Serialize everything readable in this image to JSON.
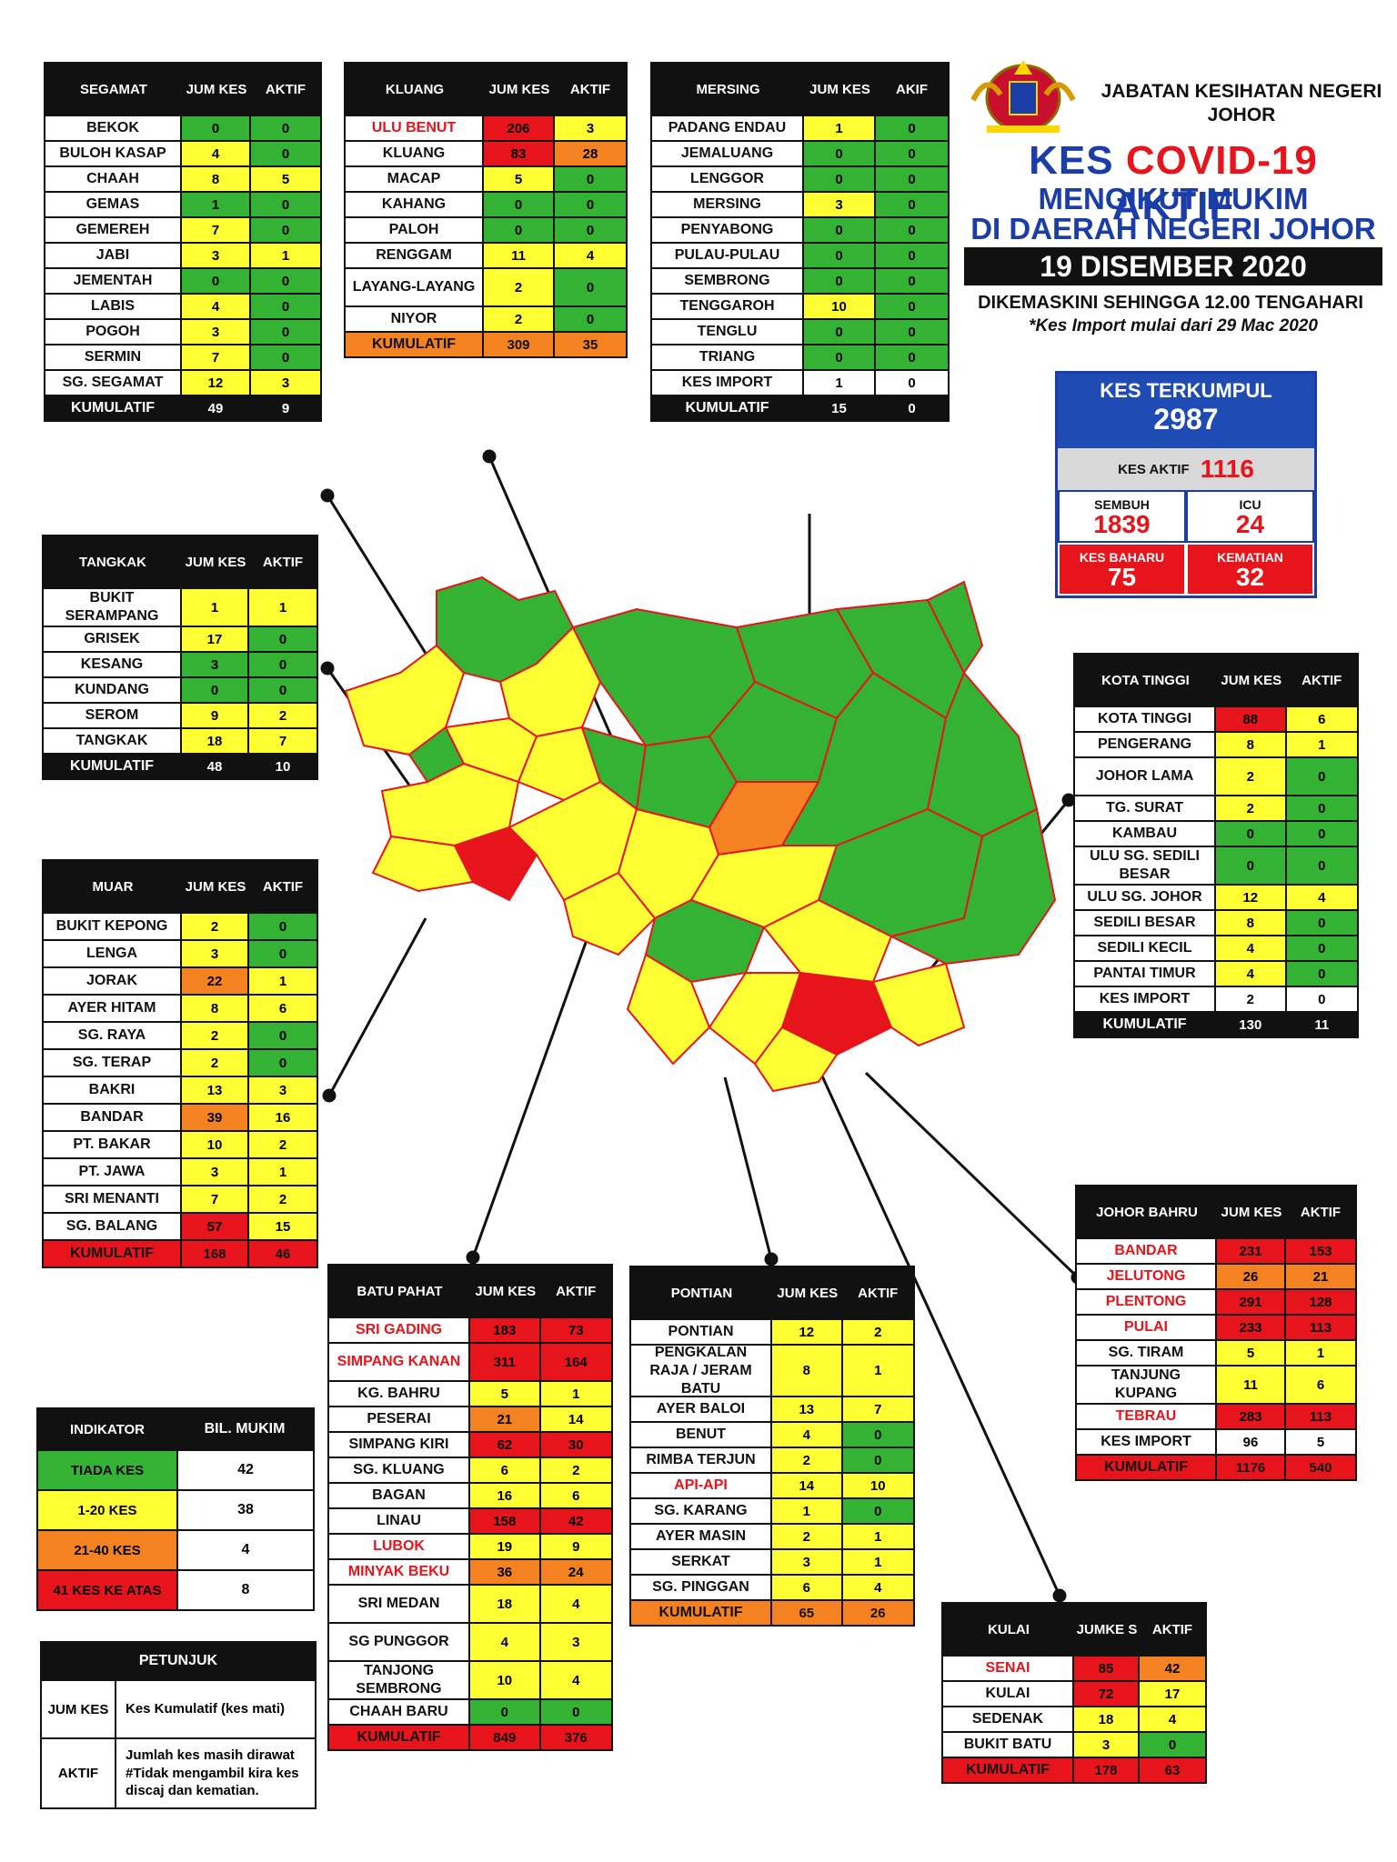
{
  "header": {
    "department": "JABATAN KESIHATAN NEGERI JOHOR",
    "title_part1": "KES",
    "title_part2": "COVID-19",
    "title_part3": "AKTIF",
    "subtitle_line1": "MENGIKUT MUKIM",
    "subtitle_line2": "DI DAERAH NEGERI JOHOR",
    "date": "19 DISEMBER 2020",
    "updated": "DIKEMASKINI SEHINGGA 12.00 TENGAHARI",
    "import_note": "*Kes Import mulai dari 29 Mac 2020"
  },
  "summary": {
    "total_label": "KES TERKUMPUL",
    "total_value": "2987",
    "active_label": "KES AKTIF",
    "active_value": "1116",
    "recovered_label": "SEMBUH",
    "recovered_value": "1839",
    "icu_label": "ICU",
    "icu_value": "24",
    "new_label": "KES BAHARU",
    "new_value": "75",
    "deaths_label": "KEMATIAN",
    "deaths_value": "32"
  },
  "colors": {
    "none": "#33b233",
    "low": "#ffff33",
    "mid": "#f58220",
    "high": "#e8141b",
    "blue": "#1a3da8"
  },
  "tables": {
    "segamat": {
      "h1": "SEGAMAT",
      "h2": "JUM KES",
      "h3": "AKTIF",
      "rows": [
        {
          "name": "BEKOK",
          "jum": "0",
          "aktif": "0",
          "cj": "g",
          "ca": "g"
        },
        {
          "name": "BULOH KASAP",
          "jum": "4",
          "aktif": "0",
          "cj": "y",
          "ca": "g"
        },
        {
          "name": "CHAAH",
          "jum": "8",
          "aktif": "5",
          "cj": "y",
          "ca": "y"
        },
        {
          "name": "GEMAS",
          "jum": "1",
          "aktif": "0",
          "cj": "g",
          "ca": "g"
        },
        {
          "name": "GEMEREH",
          "jum": "7",
          "aktif": "0",
          "cj": "y",
          "ca": "g"
        },
        {
          "name": "JABI",
          "jum": "3",
          "aktif": "1",
          "cj": "y",
          "ca": "y"
        },
        {
          "name": "JEMENTAH",
          "jum": "0",
          "aktif": "0",
          "cj": "g",
          "ca": "g"
        },
        {
          "name": "LABIS",
          "jum": "4",
          "aktif": "0",
          "cj": "y",
          "ca": "g"
        },
        {
          "name": "POGOH",
          "jum": "3",
          "aktif": "0",
          "cj": "y",
          "ca": "g"
        },
        {
          "name": "SERMIN",
          "jum": "7",
          "aktif": "0",
          "cj": "y",
          "ca": "g"
        },
        {
          "name": "SG. SEGAMAT",
          "jum": "12",
          "aktif": "3",
          "cj": "y",
          "ca": "y"
        }
      ],
      "total": {
        "name": "KUMULATIF",
        "jum": "49",
        "aktif": "9"
      }
    },
    "kluang": {
      "h1": "KLUANG",
      "h2": "JUM KES",
      "h3": "AKTIF",
      "rows": [
        {
          "name": "ULU BENUT",
          "jum": "206",
          "aktif": "3",
          "cj": "r",
          "ca": "y",
          "red": true
        },
        {
          "name": "KLUANG",
          "jum": "83",
          "aktif": "28",
          "cj": "r",
          "ca": "o"
        },
        {
          "name": "MACAP",
          "jum": "5",
          "aktif": "0",
          "cj": "y",
          "ca": "g"
        },
        {
          "name": "KAHANG",
          "jum": "0",
          "aktif": "0",
          "cj": "g",
          "ca": "g"
        },
        {
          "name": "PALOH",
          "jum": "0",
          "aktif": "0",
          "cj": "g",
          "ca": "g"
        },
        {
          "name": "RENGGAM",
          "jum": "11",
          "aktif": "4",
          "cj": "y",
          "ca": "y"
        },
        {
          "name": "LAYANG-LAYANG",
          "jum": "2",
          "aktif": "0",
          "cj": "y",
          "ca": "g",
          "tall": true
        },
        {
          "name": "NIYOR",
          "jum": "2",
          "aktif": "0",
          "cj": "y",
          "ca": "g"
        }
      ],
      "total": {
        "name": "KUMULATIF",
        "jum": "309",
        "aktif": "35"
      }
    },
    "mersing": {
      "h1": "MERSING",
      "h2": "JUM KES",
      "h3": "AKIF",
      "rows": [
        {
          "name": "PADANG ENDAU",
          "jum": "1",
          "aktif": "0",
          "cj": "y",
          "ca": "g"
        },
        {
          "name": "JEMALUANG",
          "jum": "0",
          "aktif": "0",
          "cj": "g",
          "ca": "g"
        },
        {
          "name": "LENGGOR",
          "jum": "0",
          "aktif": "0",
          "cj": "g",
          "ca": "g"
        },
        {
          "name": "MERSING",
          "jum": "3",
          "aktif": "0",
          "cj": "y",
          "ca": "g"
        },
        {
          "name": "PENYABONG",
          "jum": "0",
          "aktif": "0",
          "cj": "g",
          "ca": "g"
        },
        {
          "name": "PULAU-PULAU",
          "jum": "0",
          "aktif": "0",
          "cj": "g",
          "ca": "g"
        },
        {
          "name": "SEMBRONG",
          "jum": "0",
          "aktif": "0",
          "cj": "g",
          "ca": "g"
        },
        {
          "name": "TENGGAROH",
          "jum": "10",
          "aktif": "0",
          "cj": "y",
          "ca": "g"
        },
        {
          "name": "TENGLU",
          "jum": "0",
          "aktif": "0",
          "cj": "g",
          "ca": "g"
        },
        {
          "name": "TRIANG",
          "jum": "0",
          "aktif": "0",
          "cj": "g",
          "ca": "g"
        },
        {
          "name": "KES IMPORT",
          "jum": "1",
          "aktif": "0",
          "cj": "w",
          "ca": "w"
        }
      ],
      "total": {
        "name": "KUMULATIF",
        "jum": "15",
        "aktif": "0"
      }
    },
    "tangkak": {
      "h1": "TANGKAK",
      "h2": "JUM KES",
      "h3": "AKTIF",
      "rows": [
        {
          "name": "BUKIT SERAMPANG",
          "jum": "1",
          "aktif": "1",
          "cj": "y",
          "ca": "y",
          "tall": true
        },
        {
          "name": "GRISEK",
          "jum": "17",
          "aktif": "0",
          "cj": "y",
          "ca": "g"
        },
        {
          "name": "KESANG",
          "jum": "3",
          "aktif": "0",
          "cj": "g",
          "ca": "g"
        },
        {
          "name": "KUNDANG",
          "jum": "0",
          "aktif": "0",
          "cj": "g",
          "ca": "g"
        },
        {
          "name": "SEROM",
          "jum": "9",
          "aktif": "2",
          "cj": "y",
          "ca": "y"
        },
        {
          "name": "TANGKAK",
          "jum": "18",
          "aktif": "7",
          "cj": "y",
          "ca": "y"
        }
      ],
      "total": {
        "name": "KUMULATIF",
        "jum": "48",
        "aktif": "10"
      }
    },
    "muar": {
      "h1": "MUAR",
      "h2": "JUM KES",
      "h3": "AKTIF",
      "rows": [
        {
          "name": "BUKIT KEPONG",
          "jum": "2",
          "aktif": "0",
          "cj": "y",
          "ca": "g"
        },
        {
          "name": "LENGA",
          "jum": "3",
          "aktif": "0",
          "cj": "y",
          "ca": "g"
        },
        {
          "name": "JORAK",
          "jum": "22",
          "aktif": "1",
          "cj": "o",
          "ca": "y"
        },
        {
          "name": "AYER HITAM",
          "jum": "8",
          "aktif": "6",
          "cj": "y",
          "ca": "y"
        },
        {
          "name": "SG. RAYA",
          "jum": "2",
          "aktif": "0",
          "cj": "y",
          "ca": "g"
        },
        {
          "name": "SG. TERAP",
          "jum": "2",
          "aktif": "0",
          "cj": "y",
          "ca": "g"
        },
        {
          "name": "BAKRI",
          "jum": "13",
          "aktif": "3",
          "cj": "y",
          "ca": "y"
        },
        {
          "name": "BANDAR",
          "jum": "39",
          "aktif": "16",
          "cj": "o",
          "ca": "y"
        },
        {
          "name": "PT. BAKAR",
          "jum": "10",
          "aktif": "2",
          "cj": "y",
          "ca": "y"
        },
        {
          "name": "PT. JAWA",
          "jum": "3",
          "aktif": "1",
          "cj": "y",
          "ca": "y"
        },
        {
          "name": "SRI MENANTI",
          "jum": "7",
          "aktif": "2",
          "cj": "y",
          "ca": "y"
        },
        {
          "name": "SG. BALANG",
          "jum": "57",
          "aktif": "15",
          "cj": "r",
          "ca": "y"
        }
      ],
      "total": {
        "name": "KUMULATIF",
        "jum": "168",
        "aktif": "46"
      }
    },
    "kotatinggi": {
      "h1": "KOTA TINGGI",
      "h2": "JUM KES",
      "h3": "AKTIF",
      "rows": [
        {
          "name": "KOTA TINGGI",
          "jum": "88",
          "aktif": "6",
          "cj": "r",
          "ca": "y"
        },
        {
          "name": "PENGERANG",
          "jum": "8",
          "aktif": "1",
          "cj": "y",
          "ca": "y"
        },
        {
          "name": "JOHOR LAMA",
          "jum": "2",
          "aktif": "0",
          "cj": "y",
          "ca": "g",
          "tall": true
        },
        {
          "name": "TG. SURAT",
          "jum": "2",
          "aktif": "0",
          "cj": "y",
          "ca": "g"
        },
        {
          "name": "KAMBAU",
          "jum": "0",
          "aktif": "0",
          "cj": "g",
          "ca": "g"
        },
        {
          "name": "ULU SG. SEDILI BESAR",
          "jum": "0",
          "aktif": "0",
          "cj": "g",
          "ca": "g",
          "tall": true
        },
        {
          "name": "ULU SG. JOHOR",
          "jum": "12",
          "aktif": "4",
          "cj": "y",
          "ca": "y"
        },
        {
          "name": "SEDILI BESAR",
          "jum": "8",
          "aktif": "0",
          "cj": "y",
          "ca": "g"
        },
        {
          "name": "SEDILI KECIL",
          "jum": "4",
          "aktif": "0",
          "cj": "y",
          "ca": "g"
        },
        {
          "name": "PANTAI TIMUR",
          "jum": "4",
          "aktif": "0",
          "cj": "y",
          "ca": "g"
        },
        {
          "name": "KES IMPORT",
          "jum": "2",
          "aktif": "0",
          "cj": "w",
          "ca": "w"
        }
      ],
      "total": {
        "name": "KUMULATIF",
        "jum": "130",
        "aktif": "11"
      }
    },
    "johorbahru": {
      "h1": "JOHOR BAHRU",
      "h2": "JUM KES",
      "h3": "AKTIF",
      "rows": [
        {
          "name": "BANDAR",
          "jum": "231",
          "aktif": "153",
          "cj": "r",
          "ca": "r",
          "red": true
        },
        {
          "name": "JELUTONG",
          "jum": "26",
          "aktif": "21",
          "cj": "o",
          "ca": "o",
          "red": true
        },
        {
          "name": "PLENTONG",
          "jum": "291",
          "aktif": "128",
          "cj": "r",
          "ca": "r",
          "red": true
        },
        {
          "name": "PULAI",
          "jum": "233",
          "aktif": "113",
          "cj": "r",
          "ca": "r",
          "red": true
        },
        {
          "name": "SG. TIRAM",
          "jum": "5",
          "aktif": "1",
          "cj": "y",
          "ca": "y"
        },
        {
          "name": "TANJUNG KUPANG",
          "jum": "11",
          "aktif": "6",
          "cj": "y",
          "ca": "y",
          "tall": true
        },
        {
          "name": "TEBRAU",
          "jum": "283",
          "aktif": "113",
          "cj": "r",
          "ca": "r",
          "red": true
        },
        {
          "name": "KES IMPORT",
          "jum": "96",
          "aktif": "5",
          "cj": "w",
          "ca": "w"
        }
      ],
      "total": {
        "name": "KUMULATIF",
        "jum": "1176",
        "aktif": "540"
      }
    },
    "batupahat": {
      "h1": "BATU PAHAT",
      "h2": "JUM KES",
      "h3": "AKTIF",
      "rows": [
        {
          "name": "SRI GADING",
          "jum": "183",
          "aktif": "73",
          "cj": "r",
          "ca": "r",
          "red": true
        },
        {
          "name": "SIMPANG KANAN",
          "jum": "311",
          "aktif": "164",
          "cj": "r",
          "ca": "r",
          "red": true,
          "tall": true
        },
        {
          "name": "KG. BAHRU",
          "jum": "5",
          "aktif": "1",
          "cj": "y",
          "ca": "y"
        },
        {
          "name": "PESERAI",
          "jum": "21",
          "aktif": "14",
          "cj": "o",
          "ca": "y"
        },
        {
          "name": "SIMPANG KIRI",
          "jum": "62",
          "aktif": "30",
          "cj": "r",
          "ca": "r"
        },
        {
          "name": "SG. KLUANG",
          "jum": "6",
          "aktif": "2",
          "cj": "y",
          "ca": "y"
        },
        {
          "name": "BAGAN",
          "jum": "16",
          "aktif": "6",
          "cj": "y",
          "ca": "y"
        },
        {
          "name": "LINAU",
          "jum": "158",
          "aktif": "42",
          "cj": "r",
          "ca": "r"
        },
        {
          "name": "LUBOK",
          "jum": "19",
          "aktif": "9",
          "cj": "y",
          "ca": "y",
          "red": true
        },
        {
          "name": "MINYAK BEKU",
          "jum": "36",
          "aktif": "24",
          "cj": "o",
          "ca": "o",
          "red": true
        },
        {
          "name": "SRI MEDAN",
          "jum": "18",
          "aktif": "4",
          "cj": "y",
          "ca": "y",
          "tall": true
        },
        {
          "name": "SG PUNGGOR",
          "jum": "4",
          "aktif": "3",
          "cj": "y",
          "ca": "y",
          "tall": true
        },
        {
          "name": "TANJONG SEMBRONG",
          "jum": "10",
          "aktif": "4",
          "cj": "y",
          "ca": "y",
          "tall": true
        },
        {
          "name": "CHAAH BARU",
          "jum": "0",
          "aktif": "0",
          "cj": "g",
          "ca": "g"
        }
      ],
      "total": {
        "name": "KUMULATIF",
        "jum": "849",
        "aktif": "376"
      }
    },
    "pontian": {
      "h1": "PONTIAN",
      "h2": "JUM KES",
      "h3": "AKTIF",
      "rows": [
        {
          "name": "PONTIAN",
          "jum": "12",
          "aktif": "2",
          "cj": "y",
          "ca": "y"
        },
        {
          "name": "PENGKALAN RAJA / JERAM BATU",
          "jum": "8",
          "aktif": "1",
          "cj": "y",
          "ca": "y",
          "xtall": true
        },
        {
          "name": "AYER BALOI",
          "jum": "13",
          "aktif": "7",
          "cj": "y",
          "ca": "y"
        },
        {
          "name": "BENUT",
          "jum": "4",
          "aktif": "0",
          "cj": "y",
          "ca": "g"
        },
        {
          "name": "RIMBA TERJUN",
          "jum": "2",
          "aktif": "0",
          "cj": "y",
          "ca": "g"
        },
        {
          "name": "API-API",
          "jum": "14",
          "aktif": "10",
          "cj": "y",
          "ca": "y",
          "red": true
        },
        {
          "name": "SG. KARANG",
          "jum": "1",
          "aktif": "0",
          "cj": "y",
          "ca": "g"
        },
        {
          "name": "AYER MASIN",
          "jum": "2",
          "aktif": "1",
          "cj": "y",
          "ca": "y"
        },
        {
          "name": "SERKAT",
          "jum": "3",
          "aktif": "1",
          "cj": "y",
          "ca": "y"
        },
        {
          "name": "SG. PINGGAN",
          "jum": "6",
          "aktif": "4",
          "cj": "y",
          "ca": "y"
        }
      ],
      "total": {
        "name": "KUMULATIF",
        "jum": "65",
        "aktif": "26"
      }
    },
    "kulai": {
      "h1": "KULAI",
      "h2": "JUMKE S",
      "h3": "AKTIF",
      "rows": [
        {
          "name": "SENAI",
          "jum": "85",
          "aktif": "42",
          "cj": "r",
          "ca": "o",
          "red": true
        },
        {
          "name": "KULAI",
          "jum": "72",
          "aktif": "17",
          "cj": "r",
          "ca": "y"
        },
        {
          "name": "SEDENAK",
          "jum": "18",
          "aktif": "4",
          "cj": "y",
          "ca": "y"
        },
        {
          "name": "BUKIT BATU",
          "jum": "3",
          "aktif": "0",
          "cj": "y",
          "ca": "g"
        }
      ],
      "total": {
        "name": "KUMULATIF",
        "jum": "178",
        "aktif": "63"
      }
    }
  },
  "legend": {
    "h1": "INDIKATOR",
    "h2": "BIL. MUKIM",
    "rows": [
      {
        "label": "TIADA KES",
        "count": "42",
        "c": "g"
      },
      {
        "label": "1-20 KES",
        "count": "38",
        "c": "y"
      },
      {
        "label": "21-40 KES",
        "count": "4",
        "c": "o"
      },
      {
        "label": "41 KES KE ATAS",
        "count": "8",
        "c": "r"
      }
    ]
  },
  "guide": {
    "title": "PETUNJUK",
    "k1": "JUM KES",
    "v1": "Kes Kumulatif (kes mati)",
    "k2": "AKTIF",
    "v2": "Jumlah kes masih dirawat #Tidak mengambil kira kes discaj dan kematian."
  }
}
